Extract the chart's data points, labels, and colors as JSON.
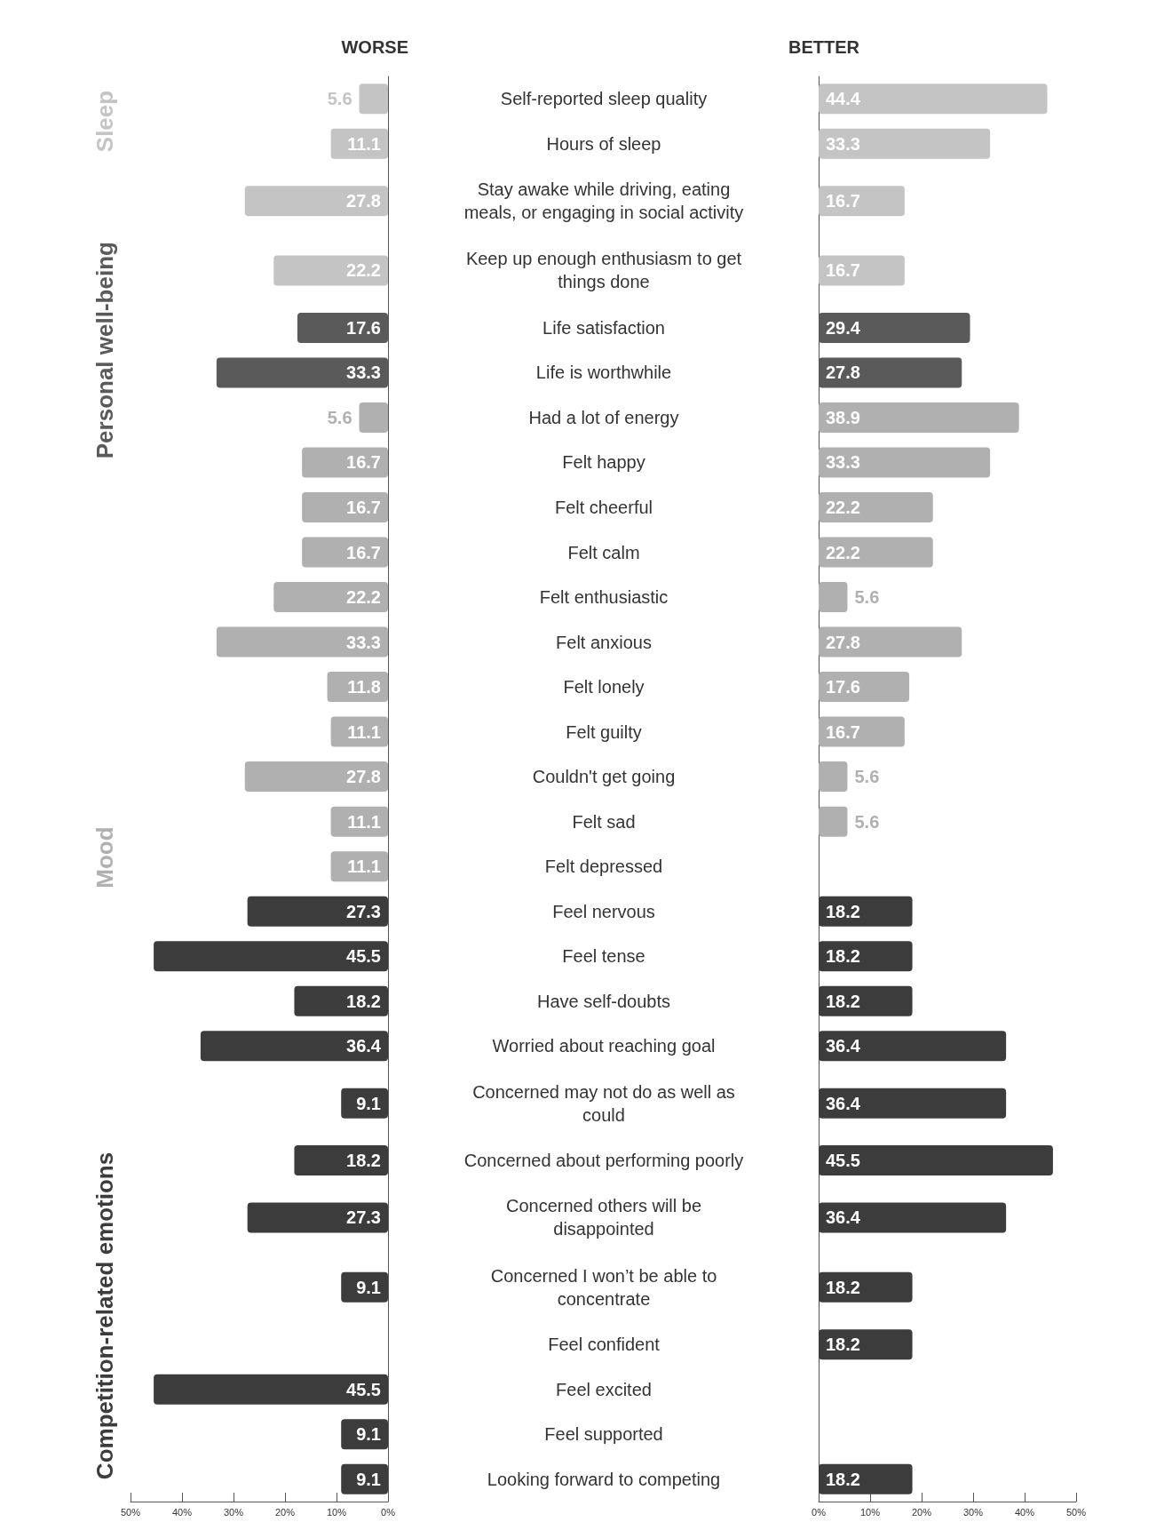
{
  "chart_data": [
    {
      "type": "bar",
      "title": "WORSE",
      "orientation": "horizontal",
      "tick_labels": "x",
      "data_labels": true,
      "categories": [
        "Self-reported sleep quality",
        "Hours of sleep",
        "Stay awake while driving, eating meals, or engaging in social activity",
        "Keep up enough enthusiasm to get things done",
        "Life satisfaction",
        "Life is worthwhile",
        "Had a lot of energy",
        "Felt happy",
        "Felt cheerful",
        "Felt calm",
        "Felt enthusiastic",
        "Felt anxious",
        "Felt lonely",
        "Felt guilty",
        "Couldn't get going",
        "Felt sad",
        "Felt depressed",
        "Feel nervous",
        "Feel tense",
        "Have self-doubts",
        "Worried about reaching goal",
        "Concerned may not do as well as could",
        "Concerned about performing poorly",
        "Concerned others will be disappointed",
        "Concerned I won’t be able to concentrate",
        "Feel confident",
        "Feel excited",
        "Feel supported",
        "Looking forward to competing"
      ],
      "values": [
        5.6,
        11.1,
        27.8,
        22.2,
        17.6,
        33.3,
        5.6,
        16.7,
        16.7,
        16.7,
        22.2,
        33.3,
        11.8,
        11.1,
        27.8,
        11.1,
        11.1,
        27.3,
        45.5,
        18.2,
        36.4,
        9.1,
        18.2,
        27.3,
        9.1,
        null,
        45.5,
        9.1,
        9.1
      ],
      "colors": [
        "#c4c4c4",
        "#c4c4c4",
        "#c4c4c4",
        "#c4c4c4",
        "#5a5a5a",
        "#5a5a5a",
        "#b0b0b0",
        "#b0b0b0",
        "#b0b0b0",
        "#b0b0b0",
        "#b0b0b0",
        "#b0b0b0",
        "#b0b0b0",
        "#b0b0b0",
        "#b0b0b0",
        "#b0b0b0",
        "#b0b0b0",
        "#3c3c3c",
        "#3c3c3c",
        "#3c3c3c",
        "#3c3c3c",
        "#3c3c3c",
        "#3c3c3c",
        "#3c3c3c",
        "#3c3c3c",
        null,
        "#3c3c3c",
        "#3c3c3c",
        "#3c3c3c"
      ],
      "xlim": [
        50,
        0
      ],
      "xticks": [
        {
          "value": 50,
          "label": "50%"
        },
        {
          "value": 40,
          "label": "40%"
        },
        {
          "value": 30,
          "label": "30%"
        },
        {
          "value": 20,
          "label": "20%"
        },
        {
          "value": 10,
          "label": "10%"
        },
        {
          "value": 0,
          "label": "0%"
        }
      ],
      "annotations": [
        "Sleep",
        "Personal well-being",
        "Mood",
        "Competition-related emotions"
      ]
    },
    {
      "type": "bar",
      "title": "BETTER",
      "orientation": "horizontal",
      "data_labels": true,
      "categories": [
        "Self-reported sleep quality",
        "Hours of sleep",
        "Stay awake while driving, eating meals, or engaging in social activity",
        "Keep up enough enthusiasm to get things done",
        "Life satisfaction",
        "Life is worthwhile",
        "Had a lot of energy",
        "Felt happy",
        "Felt cheerful",
        "Felt calm",
        "Felt enthusiastic",
        "Felt anxious",
        "Felt lonely",
        "Felt guilty",
        "Couldn't get going",
        "Felt sad",
        "Felt depressed",
        "Feel nervous",
        "Feel tense",
        "Have self-doubts",
        "Worried about reaching goal",
        "Concerned may not do as well as could",
        "Concerned about performing poorly",
        "Concerned others will be disappointed",
        "Concerned I won’t be able to concentrate",
        "Feel confident",
        "Feel excited",
        "Feel supported",
        "Looking forward to competing"
      ],
      "values": [
        44.4,
        33.3,
        16.7,
        16.7,
        29.4,
        27.8,
        38.9,
        33.3,
        22.2,
        22.2,
        5.6,
        27.8,
        17.6,
        16.7,
        5.6,
        5.6,
        null,
        18.2,
        18.2,
        18.2,
        36.4,
        36.4,
        45.5,
        36.4,
        18.2,
        18.2,
        null,
        null,
        18.2
      ],
      "colors": [
        "#c4c4c4",
        "#c4c4c4",
        "#c4c4c4",
        "#c4c4c4",
        "#5a5a5a",
        "#5a5a5a",
        "#b0b0b0",
        "#b0b0b0",
        "#b0b0b0",
        "#b0b0b0",
        "#b0b0b0",
        "#b0b0b0",
        "#b0b0b0",
        "#b0b0b0",
        "#b0b0b0",
        "#b0b0b0",
        null,
        "#3c3c3c",
        "#3c3c3c",
        "#3c3c3c",
        "#3c3c3c",
        "#3c3c3c",
        "#3c3c3c",
        "#3c3c3c",
        "#3c3c3c",
        "#3c3c3c",
        null,
        null,
        "#3c3c3c"
      ],
      "xlim": [
        0,
        50
      ],
      "xticks": [
        {
          "value": 0,
          "label": "0%"
        },
        {
          "value": 10,
          "label": "10%"
        },
        {
          "value": 20,
          "label": "20%"
        },
        {
          "value": 30,
          "label": "30%"
        },
        {
          "value": 40,
          "label": "40%"
        },
        {
          "value": 50,
          "label": "50%"
        }
      ]
    }
  ]
}
